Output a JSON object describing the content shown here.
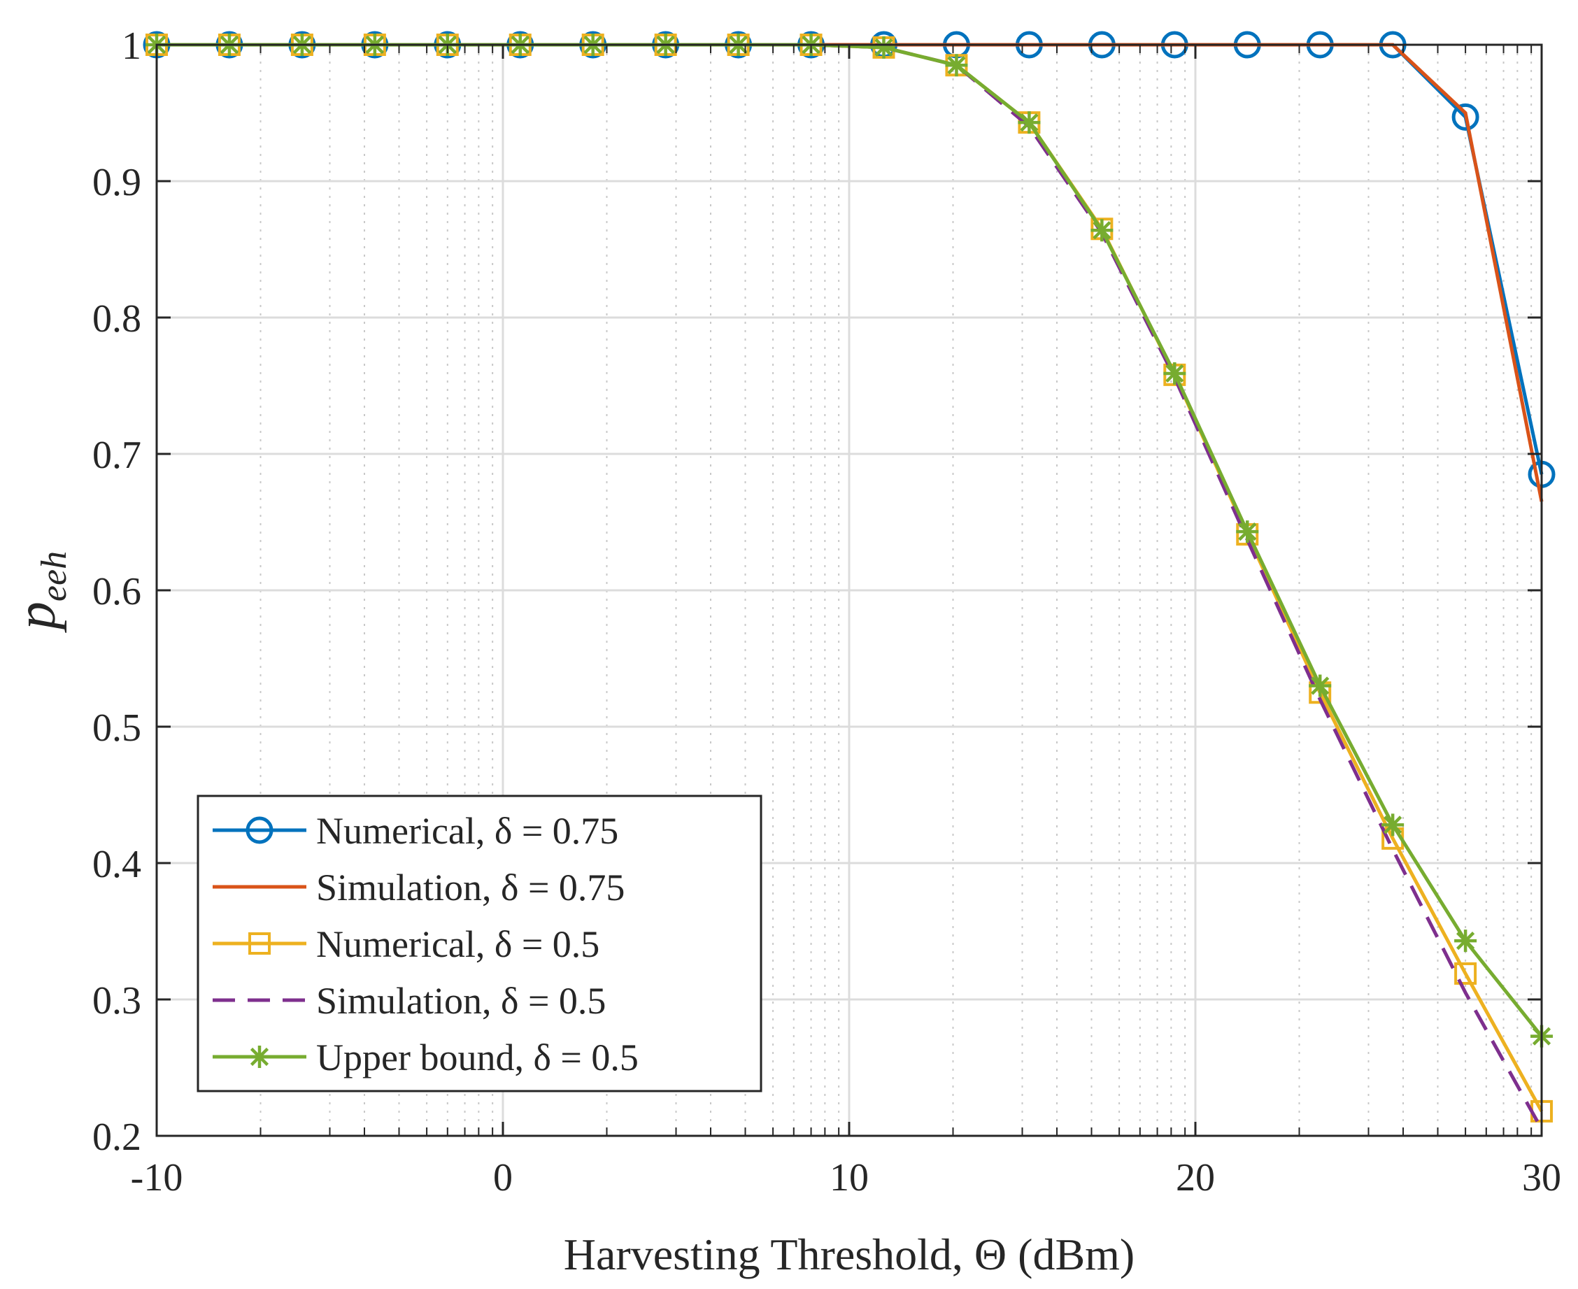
{
  "chart_data": {
    "type": "line",
    "title": "",
    "xlabel": "Harvesting Threshold,  Θ (dBm)",
    "ylabel": "p_eeh",
    "ylabel_main": "p",
    "ylabel_sub": "eeh",
    "xlim": [
      -10,
      30
    ],
    "ylim": [
      0.2,
      1.0
    ],
    "x_ticks": [
      -10,
      0,
      10,
      20,
      30
    ],
    "x_tick_labels": [
      "-10",
      "0",
      "10",
      "20",
      "30"
    ],
    "y_ticks": [
      0.2,
      0.3,
      0.4,
      0.5,
      0.6,
      0.7,
      0.8,
      0.9,
      1.0
    ],
    "y_tick_labels": [
      "0.2",
      "0.3",
      "0.4",
      "0.5",
      "0.6",
      "0.7",
      "0.8",
      "0.9",
      "1"
    ],
    "grid": true,
    "legend_position": "bottom-left",
    "x": [
      -10,
      -7.9,
      -5.8,
      -3.7,
      -1.6,
      0.5,
      2.6,
      4.7,
      6.8,
      8.9,
      11,
      13.1,
      15.2,
      17.3,
      19.4,
      21.5,
      23.6,
      25.7,
      27.8,
      30
    ],
    "series": [
      {
        "name": "Numerical, δ = 0.75",
        "label_text": "Numerical, ",
        "label_math": "δ = 0.75",
        "color": "#0072BD",
        "marker": "circle",
        "dash": "solid",
        "values": [
          1,
          1,
          1,
          1,
          1,
          1,
          1,
          1,
          1,
          1,
          1,
          1,
          1,
          1,
          1,
          1,
          1,
          1,
          0.947,
          0.685
        ]
      },
      {
        "name": "Simulation, δ = 0.75",
        "label_text": "Simulation, ",
        "label_math": "δ = 0.75",
        "color": "#D95319",
        "marker": "none",
        "dash": "solid",
        "values": [
          1,
          1,
          1,
          1,
          1,
          1,
          1,
          1,
          1,
          1,
          1,
          1,
          1,
          1,
          1,
          1,
          1,
          1,
          0.95,
          0.665
        ]
      },
      {
        "name": "Numerical, δ = 0.5",
        "label_text": "Numerical, ",
        "label_math": "δ = 0.5",
        "color": "#EDB120",
        "marker": "square",
        "dash": "solid",
        "values": [
          1,
          1,
          1,
          1,
          1,
          1,
          1,
          1,
          1,
          1,
          0.998,
          0.985,
          0.943,
          0.865,
          0.758,
          0.641,
          0.525,
          0.418,
          0.319,
          0.218
        ]
      },
      {
        "name": "Simulation, δ = 0.5",
        "label_text": "Simulation, ",
        "label_math": "δ = 0.5",
        "color": "#7E2F8E",
        "marker": "none",
        "dash": "dashed",
        "values": [
          1,
          1,
          1,
          1,
          1,
          1,
          1,
          1,
          1,
          1,
          0.998,
          0.985,
          0.94,
          0.862,
          0.756,
          0.637,
          0.52,
          0.41,
          0.305,
          0.205
        ]
      },
      {
        "name": "Upper bound, δ = 0.5",
        "label_text": "Upper bound, ",
        "label_math": "δ = 0.5",
        "color": "#77AC30",
        "marker": "asterisk",
        "dash": "solid",
        "values": [
          1,
          1,
          1,
          1,
          1,
          1,
          1,
          1,
          1,
          1,
          0.998,
          0.985,
          0.943,
          0.864,
          0.759,
          0.643,
          0.53,
          0.428,
          0.343,
          0.273
        ]
      }
    ]
  }
}
